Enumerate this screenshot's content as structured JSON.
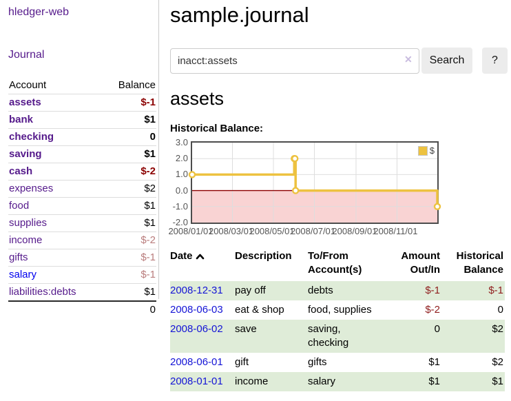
{
  "sidebar": {
    "app_title": "hledger-web",
    "nav": {
      "journal_label": "Journal"
    },
    "accounts_table": {
      "headers": {
        "account": "Account",
        "balance": "Balance"
      },
      "rows": [
        {
          "name": "assets",
          "depth": 1,
          "bold": true,
          "balance": "$-1",
          "balance_style": "neg-strong",
          "link_style": "purple"
        },
        {
          "name": "bank",
          "depth": 2,
          "bold": true,
          "balance": "$1",
          "balance_style": "pos",
          "link_style": "purple"
        },
        {
          "name": "checking",
          "depth": 3,
          "bold": true,
          "balance": "0",
          "balance_style": "pos",
          "link_style": "purple"
        },
        {
          "name": "saving",
          "depth": 3,
          "bold": true,
          "balance": "$1",
          "balance_style": "pos",
          "link_style": "purple"
        },
        {
          "name": "cash",
          "depth": 2,
          "bold": true,
          "balance": "$-2",
          "balance_style": "neg-strong",
          "link_style": "purple"
        },
        {
          "name": "expenses",
          "depth": 1,
          "bold": false,
          "balance": "$2",
          "balance_style": "pos",
          "link_style": "purple"
        },
        {
          "name": "food",
          "depth": 2,
          "bold": false,
          "balance": "$1",
          "balance_style": "pos",
          "link_style": "purple"
        },
        {
          "name": "supplies",
          "depth": 2,
          "bold": false,
          "balance": "$1",
          "balance_style": "pos",
          "link_style": "purple"
        },
        {
          "name": "income",
          "depth": 1,
          "bold": false,
          "balance": "$-2",
          "balance_style": "neg-muted",
          "link_style": "purple"
        },
        {
          "name": "gifts",
          "depth": 2,
          "bold": false,
          "balance": "$-1",
          "balance_style": "neg-muted",
          "link_style": "purple"
        },
        {
          "name": "salary",
          "depth": 2,
          "bold": false,
          "balance": "$-1",
          "balance_style": "neg-muted",
          "link_style": "blue"
        },
        {
          "name": "liabilities:debts",
          "depth": 1,
          "bold": false,
          "balance": "$1",
          "balance_style": "pos",
          "link_style": "purple"
        }
      ],
      "total": "0"
    }
  },
  "header": {
    "title": "sample.journal"
  },
  "search": {
    "value": "inacct:assets",
    "clear_icon": "✕",
    "button_label": "Search",
    "help_label": "?"
  },
  "account_page": {
    "heading": "assets",
    "chart_label": "Historical Balance:"
  },
  "chart_data": {
    "type": "line",
    "style": "step-after",
    "series": [
      {
        "name": "$",
        "color": "#EDC240",
        "points": [
          [
            "2008-01-01",
            1
          ],
          [
            "2008-06-01",
            2
          ],
          [
            "2008-06-02",
            2
          ],
          [
            "2008-06-03",
            0
          ],
          [
            "2008-12-31",
            -1
          ]
        ]
      }
    ],
    "xlim": [
      "2008-01-01",
      "2008-12-31"
    ],
    "ylim": [
      -2,
      3
    ],
    "yticks": [
      "3.0",
      "2.0",
      "1.0",
      "0.0",
      "-1.0",
      "-2.0"
    ],
    "ytick_values": [
      3,
      2,
      1,
      0,
      -1,
      -2
    ],
    "xticks": [
      "2008/01/01",
      "2008/03/01",
      "2008/05/01",
      "2008/07/01",
      "2008/09/01",
      "2008/11/01"
    ],
    "xtick_dates": [
      "2008-01-01",
      "2008-03-01",
      "2008-05-01",
      "2008-07-01",
      "2008-09-01",
      "2008-11-01"
    ],
    "grid": {
      "on": true,
      "hline_values": [
        2,
        1,
        -1
      ],
      "color": "#dedede"
    },
    "negative_region_fill": "#f9d3d3",
    "zero_line_color": "#8b0000",
    "legend": {
      "label": "$",
      "swatch_color": "#EDC240",
      "position": "top-right"
    }
  },
  "register": {
    "headers": {
      "date": "Date",
      "description": "Description",
      "tofrom": "To/From Account(s)",
      "amount": "Amount Out/In",
      "balance": "Historical Balance"
    },
    "rows": [
      {
        "date": "2008-12-31",
        "description": "pay off",
        "accounts": "debts",
        "amount": "$-1",
        "amount_neg": true,
        "balance": "$-1",
        "balance_neg": true,
        "shaded": true
      },
      {
        "date": "2008-06-03",
        "description": "eat & shop",
        "accounts": "food, supplies",
        "amount": "$-2",
        "amount_neg": true,
        "balance": "0",
        "balance_neg": false,
        "shaded": false
      },
      {
        "date": "2008-06-02",
        "description": "save",
        "accounts": "saving, checking",
        "amount": "0",
        "amount_neg": false,
        "balance": "$2",
        "balance_neg": false,
        "shaded": true
      },
      {
        "date": "2008-06-01",
        "description": "gift",
        "accounts": "gifts",
        "amount": "$1",
        "amount_neg": false,
        "balance": "$2",
        "balance_neg": false,
        "shaded": false
      },
      {
        "date": "2008-01-01",
        "description": "income",
        "accounts": "salary",
        "amount": "$1",
        "amount_neg": false,
        "balance": "$1",
        "balance_neg": false,
        "shaded": true
      }
    ]
  },
  "colors": {
    "link_purple": "#551A8B",
    "link_blue": "#0000EE",
    "date_link_blue": "#1414d6",
    "negative_strong": "#8b0000",
    "negative_muted": "#b97c7c",
    "register_negative": "#8f1d1d",
    "row_green": "#dfecd8",
    "chart_gold": "#EDC240",
    "chart_pink": "#f9d3d3",
    "chart_zero_line": "#8b0000"
  }
}
